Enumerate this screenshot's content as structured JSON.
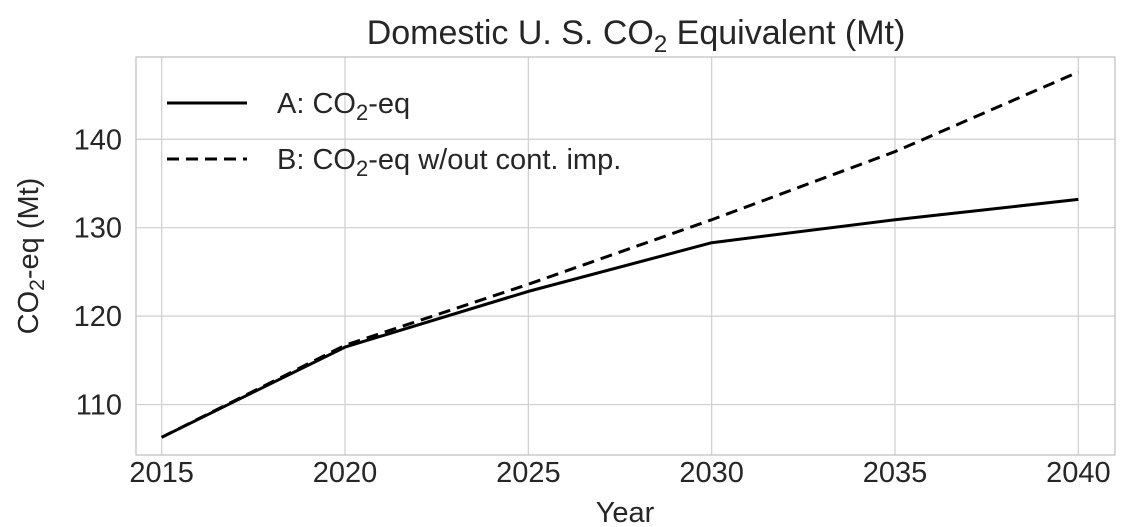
{
  "chart_data": {
    "type": "line",
    "title": "Domestic U. S. CO2 Equivalent (Mt)",
    "xlabel": "Year",
    "ylabel": "CO2-eq (Mt)",
    "x": [
      2015,
      2020,
      2025,
      2030,
      2035,
      2040
    ],
    "xlim": [
      2014.3,
      2041
    ],
    "ylim": [
      104.3,
      149.3
    ],
    "xticks": [
      "2015",
      "2020",
      "2025",
      "2030",
      "2035",
      "2040"
    ],
    "yticks": [
      "110",
      "120",
      "130",
      "140"
    ],
    "grid": true,
    "legend": "top-left",
    "series": [
      {
        "name": "A: CO2-eq",
        "style": "solid",
        "color": "#000000",
        "values": [
          106.3,
          116.5,
          122.8,
          128.3,
          130.9,
          133.2
        ]
      },
      {
        "name": "B: CO2-eq w/out cont. imp.",
        "style": "dashed",
        "color": "#000000",
        "values": [
          106.3,
          116.7,
          123.6,
          130.9,
          138.6,
          147.6
        ]
      }
    ]
  }
}
